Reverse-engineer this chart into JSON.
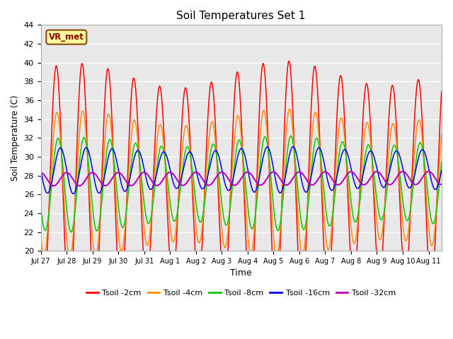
{
  "title": "Soil Temperatures Set 1",
  "xlabel": "Time",
  "ylabel": "Soil Temperature (C)",
  "ylim": [
    20,
    44
  ],
  "yticks": [
    20,
    22,
    24,
    26,
    28,
    30,
    32,
    34,
    36,
    38,
    40,
    42,
    44
  ],
  "annotation_text": "VR_met",
  "background_color": "#e8e8e8",
  "series_colors": {
    "Tsoil -2cm": "#ff0000",
    "Tsoil -4cm": "#ff8c00",
    "Tsoil -8cm": "#00cc00",
    "Tsoil -16cm": "#0000ee",
    "Tsoil -32cm": "#bb00bb"
  },
  "tick_labels": [
    "Jul 27",
    "Jul 28",
    "Jul 29",
    "Jul 30",
    "Jul 31",
    "Aug 1",
    "Aug 2",
    "Aug 3",
    "Aug 4",
    "Aug 5",
    "Aug 6",
    "Aug 7",
    "Aug 8",
    "Aug 9",
    "Aug 10",
    "Aug 11"
  ],
  "n_days": 15.5,
  "periods_per_day": 144,
  "mean_2cm": 27.0,
  "amp_2cm": 11.5,
  "mean_4cm": 27.0,
  "amp_4cm": 7.0,
  "mean_8cm": 27.0,
  "amp_8cm": 4.5,
  "mean_16cm": 28.5,
  "amp_16cm": 2.2,
  "mean_32cm": 27.3,
  "amp_32cm": 0.7
}
